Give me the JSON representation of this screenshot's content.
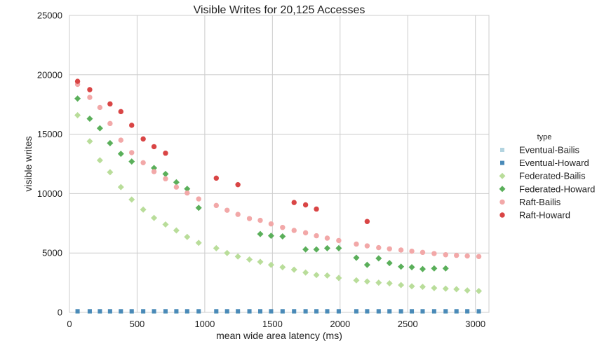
{
  "chart_data": {
    "type": "scatter",
    "title": "Visible Writes for 20,125 Accesses",
    "xlabel": "mean wide area latency (ms)",
    "ylabel": "visible writes",
    "xlim": [
      0,
      3100
    ],
    "ylim": [
      0,
      25000
    ],
    "xticks": [
      0,
      500,
      1000,
      1500,
      2000,
      2500,
      3000
    ],
    "yticks": [
      0,
      5000,
      10000,
      15000,
      20000,
      25000
    ],
    "grid": true,
    "legend": {
      "title": "type",
      "placement": "right"
    },
    "series": [
      {
        "name": "Eventual-Bailis",
        "color": "#b3d4e0",
        "marker": "square",
        "x": [
          60,
          150,
          225,
          300,
          380,
          460,
          545,
          625,
          710,
          790,
          870,
          955,
          1085,
          1165,
          1245,
          1330,
          1410,
          1490,
          1575,
          1660,
          1745,
          1825,
          1905,
          1990,
          2120,
          2200,
          2285,
          2365,
          2450,
          2530,
          2610,
          2695,
          2780,
          2860,
          2940,
          3025
        ],
        "y": [
          60,
          60,
          60,
          60,
          60,
          60,
          60,
          60,
          60,
          60,
          60,
          60,
          60,
          60,
          60,
          60,
          60,
          60,
          60,
          60,
          60,
          60,
          60,
          60,
          60,
          60,
          60,
          60,
          60,
          60,
          60,
          60,
          60,
          60,
          60,
          60
        ]
      },
      {
        "name": "Eventual-Howard",
        "color": "#4a8ab8",
        "marker": "square",
        "x": [
          60,
          150,
          225,
          300,
          380,
          460,
          545,
          625,
          710,
          790,
          870,
          955,
          1085,
          1165,
          1245,
          1330,
          1410,
          1490,
          1575,
          1660,
          1745,
          1825,
          1905,
          1990,
          2120,
          2200,
          2285,
          2365,
          2450,
          2530,
          2610,
          2695,
          2780,
          2860,
          2940,
          3025
        ],
        "y": [
          100,
          100,
          100,
          100,
          100,
          100,
          100,
          100,
          100,
          100,
          100,
          100,
          100,
          100,
          100,
          100,
          100,
          100,
          100,
          100,
          100,
          100,
          100,
          100,
          100,
          100,
          100,
          100,
          100,
          100,
          100,
          100,
          100,
          100,
          100,
          100
        ]
      },
      {
        "name": "Federated-Bailis",
        "color": "#b9dd9a",
        "marker": "diamond",
        "x": [
          60,
          150,
          225,
          300,
          380,
          460,
          545,
          625,
          710,
          790,
          870,
          955,
          1085,
          1165,
          1245,
          1330,
          1410,
          1490,
          1575,
          1660,
          1745,
          1825,
          1905,
          1990,
          2120,
          2200,
          2285,
          2365,
          2450,
          2530,
          2610,
          2695,
          2780,
          2860,
          2940,
          3025
        ],
        "y": [
          16600,
          14400,
          12800,
          11800,
          10550,
          9500,
          8650,
          7950,
          7400,
          6900,
          6350,
          5850,
          5400,
          5000,
          4700,
          4450,
          4250,
          4000,
          3800,
          3600,
          3350,
          3150,
          3100,
          2900,
          2700,
          2600,
          2500,
          2450,
          2300,
          2200,
          2150,
          2050,
          2000,
          1950,
          1850,
          1800
        ]
      },
      {
        "name": "Federated-Howard",
        "color": "#5aaf5a",
        "marker": "diamond",
        "x": [
          60,
          150,
          225,
          300,
          380,
          460,
          625,
          710,
          790,
          870,
          955,
          1410,
          1490,
          1575,
          1745,
          1825,
          1905,
          1990,
          2120,
          2200,
          2285,
          2365,
          2450,
          2530,
          2610,
          2695,
          2780
        ],
        "y": [
          18000,
          16300,
          15500,
          14250,
          13350,
          12700,
          12150,
          11650,
          10950,
          10400,
          8800,
          6600,
          6450,
          6400,
          5300,
          5300,
          5400,
          5400,
          4600,
          4000,
          4550,
          4150,
          3850,
          3800,
          3650,
          3700,
          3700
        ]
      },
      {
        "name": "Raft-Bailis",
        "color": "#f2a8a8",
        "marker": "circle",
        "x": [
          60,
          150,
          225,
          300,
          380,
          460,
          545,
          625,
          710,
          790,
          870,
          955,
          1085,
          1165,
          1245,
          1330,
          1410,
          1490,
          1575,
          1660,
          1745,
          1825,
          1905,
          1990,
          2120,
          2200,
          2285,
          2365,
          2450,
          2530,
          2610,
          2695,
          2780,
          2860,
          2940,
          3025
        ],
        "y": [
          19200,
          18100,
          17250,
          15900,
          14500,
          13450,
          12600,
          11850,
          11250,
          10550,
          10050,
          9550,
          9000,
          8600,
          8250,
          7900,
          7750,
          7450,
          7150,
          6900,
          6700,
          6450,
          6250,
          6050,
          5750,
          5600,
          5450,
          5350,
          5250,
          5150,
          5050,
          4950,
          4850,
          4800,
          4750,
          4700
        ]
      },
      {
        "name": "Raft-Howard",
        "color": "#d94545",
        "marker": "circle",
        "x": [
          60,
          150,
          300,
          380,
          460,
          545,
          625,
          710,
          1085,
          1245,
          1660,
          1745,
          1825,
          2200
        ],
        "y": [
          19450,
          18750,
          17550,
          16900,
          15750,
          14600,
          13950,
          13400,
          11300,
          10750,
          9250,
          9050,
          8700,
          7650
        ]
      }
    ]
  }
}
